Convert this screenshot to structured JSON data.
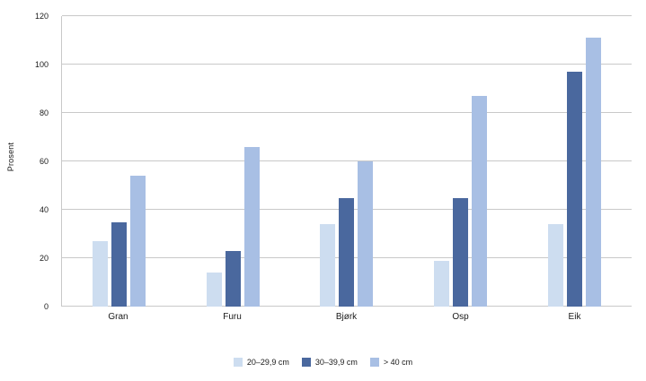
{
  "chart_data": {
    "type": "bar",
    "title": "",
    "ylabel": "Prosent",
    "xlabel": "",
    "ylim": [
      0,
      120
    ],
    "yticks": [
      0,
      20,
      40,
      60,
      80,
      100,
      120
    ],
    "grid": true,
    "legend_position": "bottom",
    "categories": [
      "Gran",
      "Furu",
      "Bjørk",
      "Osp",
      "Eik"
    ],
    "series": [
      {
        "name": "20–29,9 cm",
        "color": "#cdddf0",
        "values": [
          27,
          14,
          34,
          19,
          34
        ]
      },
      {
        "name": "30–39,9 cm",
        "color": "#4a689e",
        "values": [
          35,
          23,
          45,
          45,
          97
        ]
      },
      {
        "name": "> 40  cm",
        "color": "#a8bfe4",
        "values": [
          54,
          66,
          60,
          87,
          111
        ]
      }
    ]
  }
}
